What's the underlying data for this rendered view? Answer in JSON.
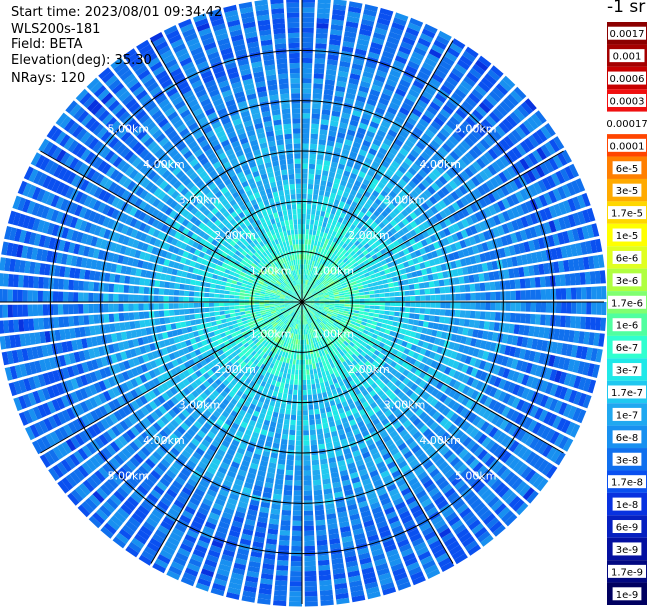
{
  "header": {
    "start_time": "Start time: 2023/08/01 09:34:42",
    "instrument": "WLS200s-181",
    "field": "Field: BETA",
    "elevation": "Elevation(deg): 35.30",
    "nrays": "NRays: 120"
  },
  "colorbar": {
    "unit": "-1 sr",
    "labels": [
      "0.0017",
      "0.001",
      "0.0006",
      "0.0003",
      "0.00017",
      "0.0001",
      "6e-5",
      "3e-5",
      "1.7e-5",
      "1e-5",
      "6e-6",
      "3e-6",
      "1.7e-6",
      "1e-6",
      "6e-7",
      "3e-7",
      "1.7e-7",
      "1e-7",
      "6e-8",
      "3e-8",
      "1.7e-8",
      "1e-8",
      "6e-9",
      "3e-9",
      "1.7e-9",
      "1e-9"
    ],
    "colors": [
      "#8b0000",
      "#a40000",
      "#c80000",
      "#f01010",
      "#ffffff",
      "#ff4500",
      "#ff7f00",
      "#ffaa00",
      "#ffd700",
      "#ffff00",
      "#e0ff20",
      "#b0ff40",
      "#80ff70",
      "#50ffa0",
      "#30ffd0",
      "#20e8e8",
      "#20c8f0",
      "#20a8f0",
      "#1890f0",
      "#1070ee",
      "#0a50f0",
      "#0832e0",
      "#0620c0",
      "#0410a0",
      "#020880",
      "#000060"
    ]
  },
  "chart_data": {
    "type": "heatmap",
    "subtype": "polar-ppi",
    "nrays": 120,
    "max_range_km": 6.0,
    "range_ring_labels": [
      "1.00km",
      "2.00km",
      "3.00km",
      "4.00km",
      "5.00km"
    ],
    "range_rings_km": [
      1,
      2,
      3,
      4,
      5
    ],
    "spoke_angles_deg": [
      0,
      30,
      60,
      90,
      120,
      150,
      180,
      210,
      240,
      270,
      300,
      330
    ],
    "field": "BETA",
    "color_scale": "log",
    "value_range": [
      1e-09,
      0.0017
    ],
    "radial_profile": [
      {
        "range_km": 0.5,
        "value": 6e-07
      },
      {
        "range_km": 1.0,
        "value": 6e-07
      },
      {
        "range_km": 1.5,
        "value": 3e-07
      },
      {
        "range_km": 2.0,
        "value": 1.7e-07
      },
      {
        "range_km": 3.0,
        "value": 1e-07
      },
      {
        "range_km": 4.0,
        "value": 6e-08
      },
      {
        "range_km": 5.0,
        "value": 3e-08
      },
      {
        "range_km": 6.0,
        "value": 3e-08
      }
    ]
  }
}
